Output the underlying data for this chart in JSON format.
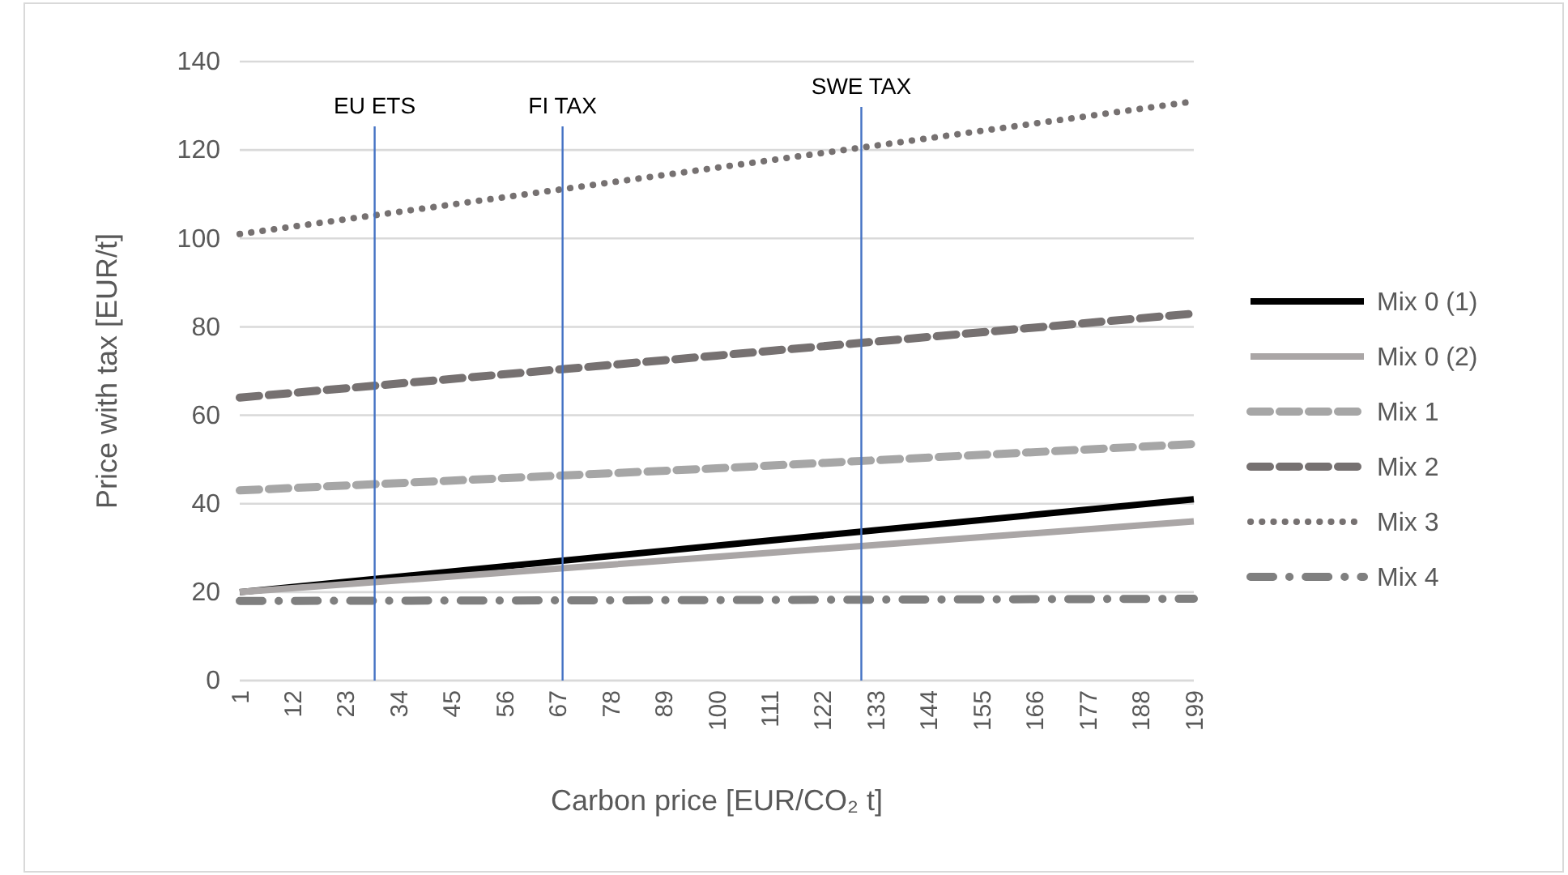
{
  "chart_data": {
    "type": "line",
    "xlabel": "Carbon price [EUR/CO₂ t]",
    "ylabel": "Price with tax [EUR/t]",
    "xlim": [
      1,
      199
    ],
    "xticks": [
      1,
      12,
      23,
      34,
      45,
      56,
      67,
      78,
      89,
      100,
      111,
      122,
      133,
      144,
      155,
      166,
      177,
      188,
      199
    ],
    "ylim": [
      0,
      140
    ],
    "yticks": [
      0,
      20,
      40,
      60,
      80,
      100,
      120,
      140
    ],
    "grid": "y",
    "legend": "right",
    "series": [
      {
        "name": "Mix 0 (1)",
        "color": "#000000",
        "line_style": "solid",
        "x": [
          1,
          100,
          199
        ],
        "values": [
          20,
          30.5,
          41
        ]
      },
      {
        "name": "Mix 0 (2)",
        "color": "#aaa6a6",
        "line_style": "solid",
        "x": [
          1,
          100,
          199
        ],
        "values": [
          20,
          28,
          36
        ]
      },
      {
        "name": "Mix 1",
        "color": "#a6a6a6",
        "line_style": "dashed",
        "x": [
          1,
          100,
          199
        ],
        "values": [
          43,
          48,
          53.5
        ]
      },
      {
        "name": "Mix 2",
        "color": "#767171",
        "line_style": "dashed",
        "x": [
          1,
          100,
          199
        ],
        "values": [
          64,
          73.5,
          83
        ]
      },
      {
        "name": "Mix 3",
        "color": "#767171",
        "line_style": "dotted",
        "x": [
          1,
          100,
          199
        ],
        "values": [
          101,
          116,
          131
        ]
      },
      {
        "name": "Mix 4",
        "color": "#7f7f7f",
        "line_style": "dashdot",
        "x": [
          1,
          100,
          199
        ],
        "values": [
          18,
          18.2,
          18.5
        ]
      }
    ],
    "ref_lines": [
      {
        "axis": "x",
        "value": 29,
        "label": "EU ETS",
        "color": "#4472c4"
      },
      {
        "axis": "x",
        "value": 68,
        "label": "FI TAX",
        "color": "#4472c4"
      },
      {
        "axis": "x",
        "value": 130,
        "label": "SWE TAX",
        "color": "#4472c4"
      }
    ]
  }
}
